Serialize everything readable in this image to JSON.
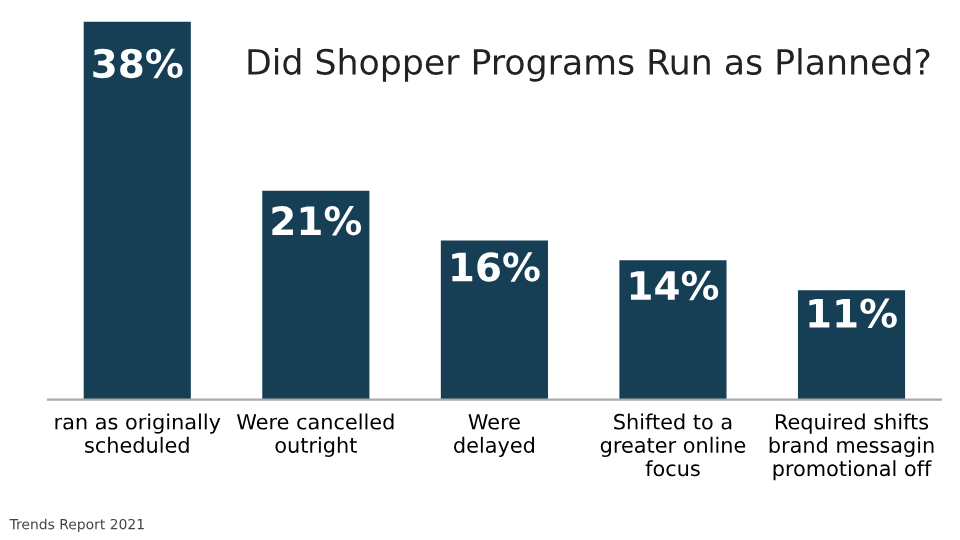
{
  "chart_data": {
    "type": "bar",
    "title": "Did Shopper Programs Run as Planned?",
    "categories": [
      "ran as originally\nscheduled",
      "Were cancelled\noutright",
      "Were\ndelayed",
      "Shifted to a\ngreater online\nfocus",
      "Required shifts\nbrand messagin\npromotional off"
    ],
    "values": [
      38,
      21,
      16,
      14,
      11
    ],
    "value_labels": [
      "38%",
      "21%",
      "16%",
      "14%",
      "11%"
    ],
    "color": "#163f56",
    "tick_labels": "x",
    "annotations": [
      "Trends Report 2021"
    ]
  }
}
